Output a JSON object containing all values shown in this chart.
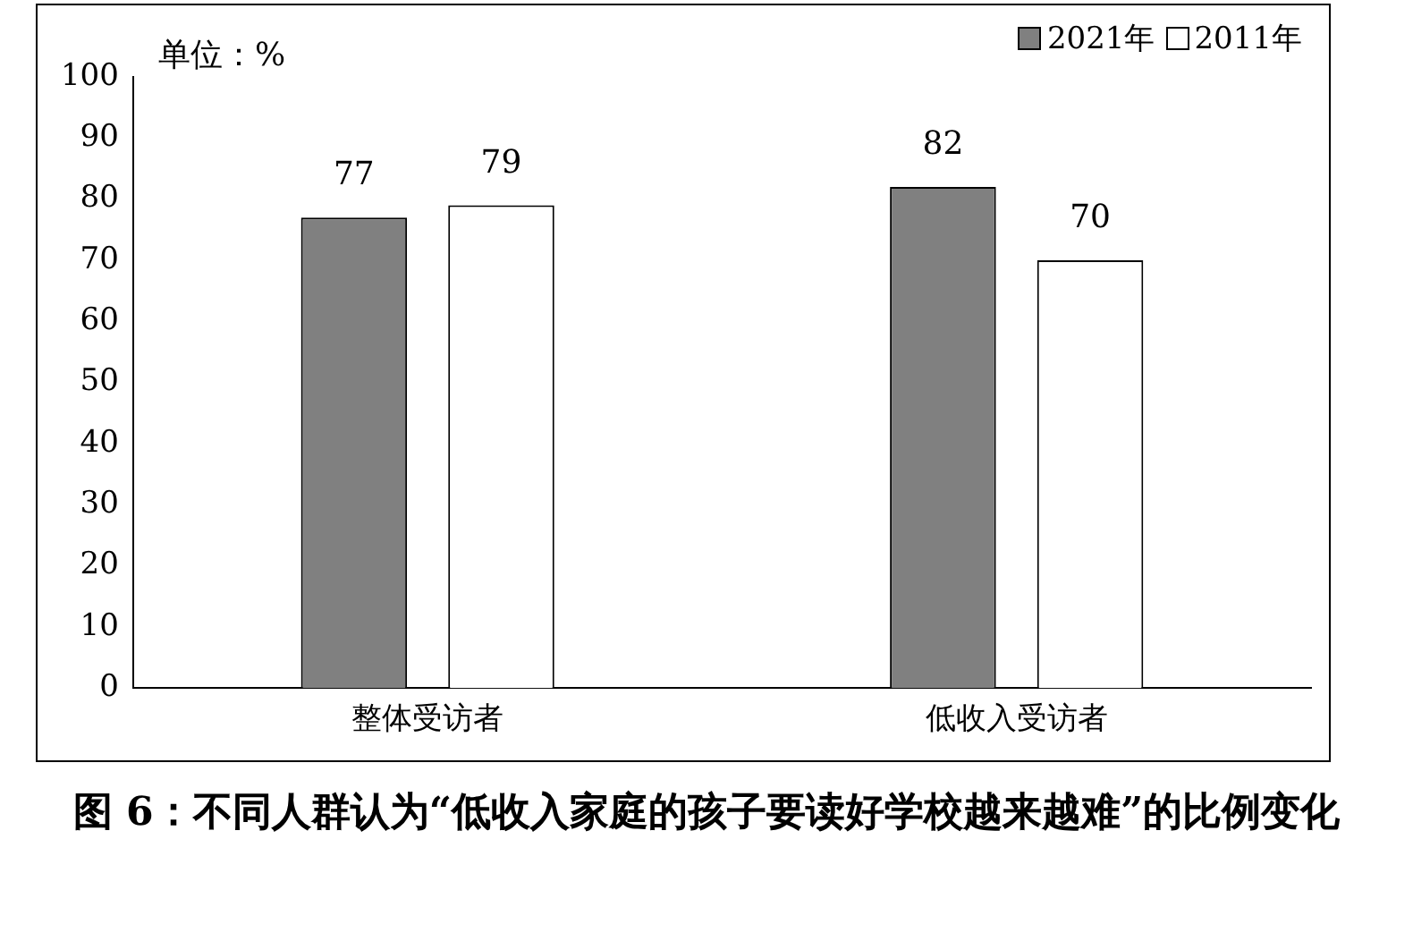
{
  "chart_data": {
    "type": "bar",
    "title": "图 6：不同人群认为“低收入家庭的孩子要读好学校越来越难”的比例变化",
    "categories": [
      "整体受访者",
      "低收入受访者"
    ],
    "series": [
      {
        "name": "2021年",
        "color": "#808080",
        "values": [
          77,
          82
        ]
      },
      {
        "name": "2011年",
        "color": "#ffffff",
        "values": [
          79,
          70
        ]
      }
    ],
    "ylim": [
      0,
      100
    ],
    "yticks": [
      0,
      10,
      20,
      30,
      40,
      50,
      60,
      70,
      80,
      90,
      100
    ],
    "grid": false,
    "legend": "top right",
    "data_labels": true,
    "annotations": [
      "单位：%"
    ]
  }
}
